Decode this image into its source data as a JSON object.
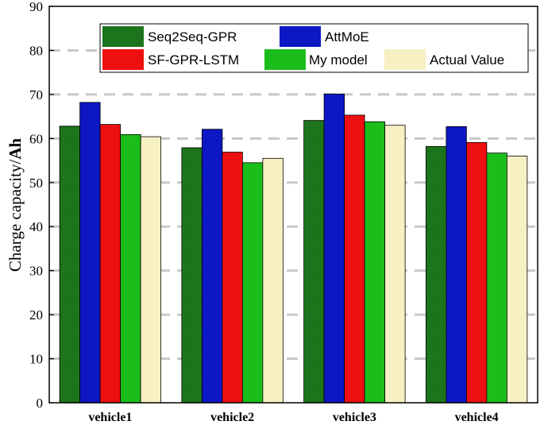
{
  "chart_data": {
    "type": "bar",
    "title": "",
    "xlabel": "",
    "ylabel_prefix": "Charge capacity/",
    "ylabel_unit": "Ah",
    "ylim": [
      0,
      90
    ],
    "yticks": [
      0,
      10,
      20,
      30,
      40,
      50,
      60,
      70,
      80,
      90
    ],
    "grid": "horizontal-dashed",
    "legend_position": "top",
    "categories": [
      "vehicle1",
      "vehicle2",
      "vehicle3",
      "vehicle4"
    ],
    "series": [
      {
        "name": "Seq2Seq-GPR",
        "color": "#1e7a1e",
        "pattern": "dots",
        "values": [
          62.8,
          57.9,
          64.1,
          58.2
        ]
      },
      {
        "name": "AttMoE",
        "color": "#0d17c4",
        "values": [
          68.2,
          62.1,
          70.1,
          62.7
        ]
      },
      {
        "name": "SF-GPR-LSTM",
        "color": "#ee1010",
        "values": [
          63.2,
          56.9,
          65.3,
          59.1
        ]
      },
      {
        "name": "My model",
        "color": "#1bbd1b",
        "values": [
          60.9,
          54.5,
          63.8,
          56.7
        ]
      },
      {
        "name": "Actual Value",
        "color": "#f7f0c2",
        "values": [
          60.4,
          55.5,
          63.0,
          56.0
        ]
      }
    ]
  }
}
